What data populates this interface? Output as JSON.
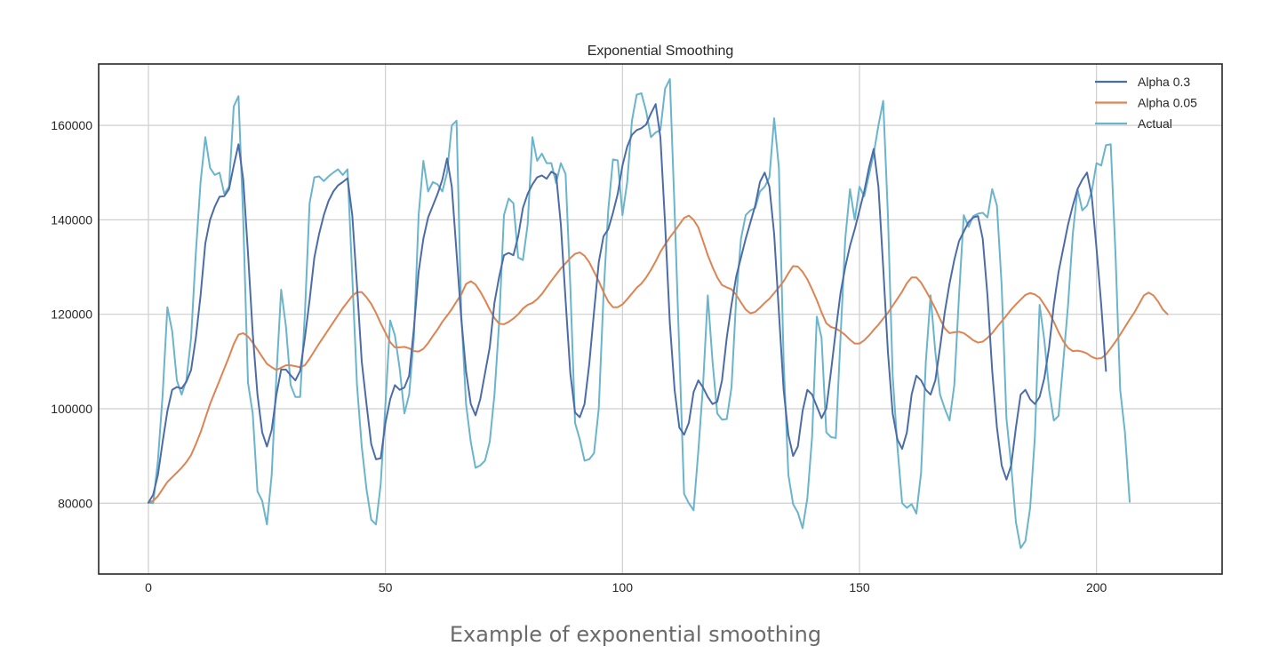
{
  "caption": "Example of exponential smoothing",
  "colors": {
    "alpha_03": "#4c6ca8",
    "alpha_005": "#dd8452",
    "actual": "#6ab4cc",
    "grid": "#cfcfcf",
    "frame": "#262626"
  },
  "chart_data": {
    "type": "line",
    "title": "Exponential Smoothing",
    "xlabel": "",
    "ylabel": "",
    "xlim": [
      -10.5,
      226.5
    ],
    "ylim": [
      65000,
      173000
    ],
    "xticks": [
      0,
      50,
      100,
      150,
      200
    ],
    "xtick_labels": [
      "0",
      "50",
      "100",
      "150",
      "200"
    ],
    "yticks": [
      80000,
      100000,
      120000,
      140000,
      160000
    ],
    "ytick_labels": [
      "80000",
      "100000",
      "120000",
      "140000",
      "160000"
    ],
    "grid": true,
    "legend": "top-right",
    "x_start": 0,
    "series": [
      {
        "name": "Alpha 0.3",
        "color": "#4c6ca8",
        "values": [
          80115,
          81800,
          86000,
          93000,
          99500,
          104000,
          104600,
          104300,
          105700,
          108200,
          115000,
          124000,
          135000,
          140000,
          142800,
          144900,
          145000,
          146500,
          151500,
          156000,
          148500,
          133000,
          116000,
          103000,
          95000,
          92000,
          95500,
          103000,
          108300,
          108300,
          107100,
          106000,
          108000,
          115000,
          123000,
          132000,
          137000,
          141000,
          144000,
          146000,
          147300,
          148000,
          148800,
          141000,
          126000,
          110000,
          101000,
          92500,
          89300,
          89500,
          97000,
          102000,
          105000,
          104000,
          104500,
          107000,
          117000,
          129000,
          136000,
          140500,
          143000,
          145500,
          148500,
          153000,
          147000,
          133000,
          119000,
          108000,
          101000,
          98600,
          102000,
          107500,
          113000,
          122500,
          128000,
          132500,
          133000,
          132500,
          136500,
          142500,
          145500,
          147500,
          149000,
          149400,
          148700,
          150200,
          149600,
          139000,
          123000,
          107500,
          99200,
          98200,
          101000,
          109500,
          120500,
          131000,
          136500,
          138000,
          141500,
          145500,
          151500,
          155500,
          158000,
          159000,
          159400,
          160200,
          162500,
          164500,
          157500,
          139000,
          118000,
          104000,
          96000,
          94500,
          97000,
          103500,
          106000,
          104500,
          102500,
          101000,
          101500,
          106000,
          115000,
          122000,
          128000,
          132000,
          136000,
          139500,
          143000,
          148000,
          150000,
          147000,
          137000,
          120500,
          104000,
          94500,
          90000,
          92000,
          99500,
          104000,
          103000,
          100500,
          98000,
          100000,
          108000,
          116500,
          124500,
          130000,
          134500,
          138000,
          142000,
          146000,
          151000,
          155000,
          147000,
          130000,
          112000,
          99000,
          93500,
          91500,
          95000,
          103000,
          107000,
          106000,
          104000,
          103000,
          106000,
          113000,
          120500,
          126500,
          131500,
          135500,
          137500,
          139500,
          140500,
          140800,
          136000,
          124000,
          108000,
          96000,
          88000,
          85000,
          88000,
          96000,
          103000,
          104000,
          102000,
          101000,
          102500,
          106500,
          113000,
          122000,
          129000,
          134000,
          139000,
          143000,
          146500,
          148500,
          150000,
          145000,
          134000,
          122000,
          108000
        ],
        "line_width": 2.0
      },
      {
        "name": "Alpha 0.05",
        "color": "#dd8452",
        "values": [
          80115,
          80500,
          81500,
          83000,
          84500,
          85500,
          86500,
          87500,
          88700,
          90200,
          92500,
          95000,
          98000,
          101000,
          103500,
          106000,
          108500,
          111000,
          113700,
          115700,
          116000,
          115300,
          114000,
          112500,
          111000,
          109500,
          108800,
          108200,
          108700,
          109200,
          109200,
          109000,
          108800,
          109200,
          110600,
          112200,
          113800,
          115300,
          116800,
          118300,
          119800,
          121300,
          122600,
          123900,
          124700,
          124700,
          123600,
          122200,
          120300,
          118100,
          116100,
          114100,
          113000,
          113000,
          113100,
          112800,
          112200,
          112100,
          112700,
          113900,
          115400,
          116800,
          118400,
          119700,
          121100,
          122700,
          124200,
          126400,
          127000,
          126300,
          124800,
          123000,
          121000,
          119200,
          118000,
          117900,
          118400,
          119100,
          120000,
          121200,
          122000,
          122400,
          123200,
          124300,
          125700,
          127100,
          128400,
          129700,
          130800,
          131900,
          132800,
          133100,
          132400,
          131000,
          129000,
          127000,
          124700,
          122700,
          121500,
          121500,
          122100,
          123200,
          124400,
          125600,
          126500,
          127800,
          129400,
          131200,
          133200,
          134800,
          136300,
          137600,
          139000,
          140400,
          140900,
          140000,
          138400,
          135500,
          132500,
          130000,
          127800,
          126200,
          125700,
          125300,
          124100,
          122500,
          121000,
          120200,
          120500,
          121400,
          122400,
          123300,
          124500,
          125700,
          127000,
          128700,
          130200,
          130100,
          129000,
          127400,
          125300,
          123000,
          120400,
          118100,
          117300,
          117000,
          116400,
          115600,
          114600,
          113800,
          113800,
          114500,
          115500,
          116700,
          117800,
          119100,
          120300,
          121800,
          123300,
          124800,
          126600,
          127800,
          127800,
          126700,
          125000,
          123200,
          121200,
          119000,
          117000,
          116000,
          116200,
          116300,
          116000,
          115300,
          114500,
          114000,
          114200,
          115000,
          116000,
          117300,
          118500,
          119700,
          121000,
          122100,
          123100,
          124100,
          124500,
          124200,
          123500,
          122000,
          120400,
          118400,
          116200,
          114300,
          112900,
          112200,
          112300,
          112100,
          111700,
          111000,
          110600,
          110700,
          111500,
          112800,
          114200,
          115700,
          117300,
          118900,
          120400,
          122200,
          124000,
          124600,
          124000,
          122700,
          121000,
          120000
        ],
        "line_width": 2.0
      },
      {
        "name": "Actual",
        "color": "#6ab4cc",
        "values": [
          80115,
          80000,
          89000,
          103000,
          121500,
          116500,
          106000,
          103000,
          106000,
          115000,
          133000,
          148000,
          157500,
          151000,
          149500,
          150000,
          145500,
          147000,
          164000,
          166200,
          140000,
          105500,
          99000,
          82500,
          80500,
          75500,
          86000,
          107000,
          125200,
          117500,
          105000,
          102500,
          102500,
          120000,
          143500,
          149000,
          149200,
          148200,
          149200,
          150000,
          150700,
          149500,
          150700,
          128000,
          105000,
          92000,
          83000,
          76500,
          75500,
          84000,
          101000,
          118700,
          115500,
          108500,
          99000,
          103000,
          115000,
          141000,
          152500,
          146000,
          148000,
          147500,
          146000,
          150000,
          160000,
          161000,
          120000,
          101000,
          93000,
          87500,
          88000,
          89000,
          93000,
          103000,
          118500,
          141000,
          144500,
          143500,
          132000,
          131500,
          139000,
          157500,
          152500,
          154000,
          152000,
          152000,
          147800,
          152000,
          149700,
          126000,
          97000,
          93500,
          89000,
          89300,
          90600,
          100000,
          124000,
          142000,
          152800,
          152600,
          141000,
          148000,
          161000,
          166500,
          166800,
          163000,
          157500,
          158500,
          159000,
          167800,
          169800,
          142000,
          112000,
          82000,
          80000,
          78500,
          91000,
          105000,
          124000,
          110000,
          99000,
          97700,
          97800,
          104500,
          123500,
          136000,
          141000,
          142000,
          142500,
          146000,
          147000,
          149000,
          161500,
          151000,
          110000,
          86000,
          79800,
          78000,
          74700,
          81000,
          94000,
          119500,
          115000,
          95000,
          94000,
          93800,
          115000,
          136000,
          146500,
          140000,
          147000,
          145000,
          149500,
          154000,
          160000,
          165200,
          141000,
          107000,
          92000,
          80000,
          79000,
          79800,
          77800,
          86500,
          110000,
          124000,
          112000,
          103000,
          100000,
          97500,
          105000,
          124000,
          141000,
          138500,
          140800,
          141300,
          141500,
          140500,
          146500,
          143000,
          126000,
          98000,
          88000,
          76000,
          70500,
          72000,
          79000,
          94000,
          122000,
          114500,
          104000,
          97500,
          98500,
          110000,
          122000,
          137000,
          146500,
          142000,
          143000,
          146000,
          152000,
          151500,
          155800,
          156000,
          133000,
          104000,
          95000,
          80300
        ],
        "line_width": 2.0
      }
    ]
  }
}
